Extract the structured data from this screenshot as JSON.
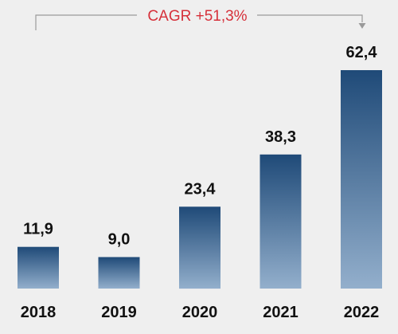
{
  "chart_data": {
    "type": "bar",
    "categories": [
      "2018",
      "2019",
      "2020",
      "2021",
      "2022"
    ],
    "values": [
      11.9,
      9.0,
      23.4,
      38.3,
      62.4
    ],
    "value_labels": [
      "11,9",
      "9,0",
      "23,4",
      "38,3",
      "62,4"
    ],
    "title": "",
    "xlabel": "",
    "ylabel": "",
    "ylim": [
      0,
      62.4
    ],
    "grid": false,
    "legend": "none",
    "annotation": "CAGR +51,3%",
    "colors": {
      "bar_top": "#1f4a78",
      "bar_bottom": "#93afcc",
      "annotation": "#d6303a",
      "bracket": "#9a9a9a",
      "text": "#111111",
      "background": "#efefef"
    }
  }
}
